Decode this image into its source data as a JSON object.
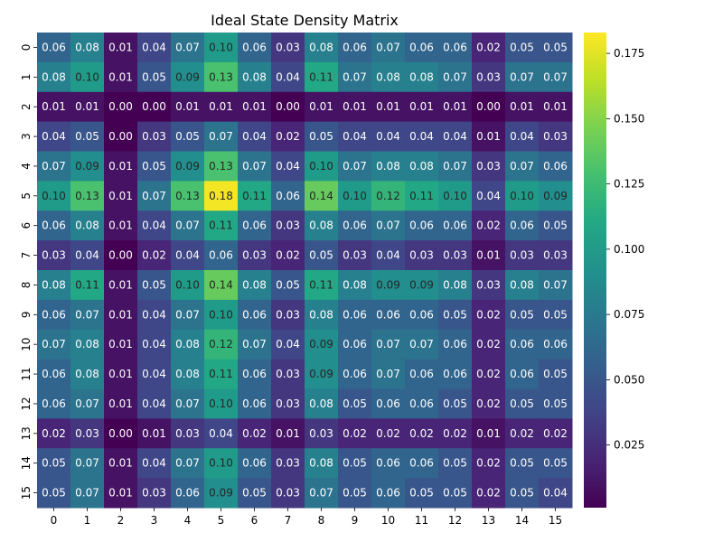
{
  "chart_data": {
    "type": "heatmap",
    "title": "Ideal State Density Matrix",
    "x_labels": [
      "0",
      "1",
      "2",
      "3",
      "4",
      "5",
      "6",
      "7",
      "8",
      "9",
      "10",
      "11",
      "12",
      "13",
      "14",
      "15"
    ],
    "y_labels": [
      "0",
      "1",
      "2",
      "3",
      "4",
      "5",
      "6",
      "7",
      "8",
      "9",
      "10",
      "11",
      "12",
      "13",
      "14",
      "15"
    ],
    "values": [
      [
        0.06,
        0.08,
        0.01,
        0.04,
        0.07,
        0.1,
        0.06,
        0.03,
        0.08,
        0.06,
        0.07,
        0.06,
        0.06,
        0.02,
        0.05,
        0.05
      ],
      [
        0.08,
        0.1,
        0.01,
        0.05,
        0.09,
        0.13,
        0.08,
        0.04,
        0.11,
        0.07,
        0.08,
        0.08,
        0.07,
        0.03,
        0.07,
        0.07
      ],
      [
        0.01,
        0.01,
        0.0,
        0.0,
        0.01,
        0.01,
        0.01,
        0.0,
        0.01,
        0.01,
        0.01,
        0.01,
        0.01,
        0.0,
        0.01,
        0.01
      ],
      [
        0.04,
        0.05,
        0.0,
        0.03,
        0.05,
        0.07,
        0.04,
        0.02,
        0.05,
        0.04,
        0.04,
        0.04,
        0.04,
        0.01,
        0.04,
        0.03
      ],
      [
        0.07,
        0.09,
        0.01,
        0.05,
        0.09,
        0.13,
        0.07,
        0.04,
        0.1,
        0.07,
        0.08,
        0.08,
        0.07,
        0.03,
        0.07,
        0.06
      ],
      [
        0.1,
        0.13,
        0.01,
        0.07,
        0.13,
        0.18,
        0.11,
        0.06,
        0.14,
        0.1,
        0.12,
        0.11,
        0.1,
        0.04,
        0.1,
        0.09
      ],
      [
        0.06,
        0.08,
        0.01,
        0.04,
        0.07,
        0.11,
        0.06,
        0.03,
        0.08,
        0.06,
        0.07,
        0.06,
        0.06,
        0.02,
        0.06,
        0.05
      ],
      [
        0.03,
        0.04,
        0.0,
        0.02,
        0.04,
        0.06,
        0.03,
        0.02,
        0.05,
        0.03,
        0.04,
        0.03,
        0.03,
        0.01,
        0.03,
        0.03
      ],
      [
        0.08,
        0.11,
        0.01,
        0.05,
        0.1,
        0.14,
        0.08,
        0.05,
        0.11,
        0.08,
        0.09,
        0.09,
        0.08,
        0.03,
        0.08,
        0.07
      ],
      [
        0.06,
        0.07,
        0.01,
        0.04,
        0.07,
        0.1,
        0.06,
        0.03,
        0.08,
        0.06,
        0.06,
        0.06,
        0.05,
        0.02,
        0.05,
        0.05
      ],
      [
        0.07,
        0.08,
        0.01,
        0.04,
        0.08,
        0.12,
        0.07,
        0.04,
        0.09,
        0.06,
        0.07,
        0.07,
        0.06,
        0.02,
        0.06,
        0.06
      ],
      [
        0.06,
        0.08,
        0.01,
        0.04,
        0.08,
        0.11,
        0.06,
        0.03,
        0.09,
        0.06,
        0.07,
        0.06,
        0.06,
        0.02,
        0.06,
        0.05
      ],
      [
        0.06,
        0.07,
        0.01,
        0.04,
        0.07,
        0.1,
        0.06,
        0.03,
        0.08,
        0.05,
        0.06,
        0.06,
        0.05,
        0.02,
        0.05,
        0.05
      ],
      [
        0.02,
        0.03,
        0.0,
        0.01,
        0.03,
        0.04,
        0.02,
        0.01,
        0.03,
        0.02,
        0.02,
        0.02,
        0.02,
        0.01,
        0.02,
        0.02
      ],
      [
        0.05,
        0.07,
        0.01,
        0.04,
        0.07,
        0.1,
        0.06,
        0.03,
        0.08,
        0.05,
        0.06,
        0.06,
        0.05,
        0.02,
        0.05,
        0.05
      ],
      [
        0.05,
        0.07,
        0.01,
        0.03,
        0.06,
        0.09,
        0.05,
        0.03,
        0.07,
        0.05,
        0.06,
        0.05,
        0.05,
        0.02,
        0.05,
        0.04
      ]
    ],
    "colormap": "viridis",
    "color_range": [
      0.001,
      0.183
    ],
    "colorbar_ticks": [
      "0.025",
      "0.050",
      "0.075",
      "0.100",
      "0.125",
      "0.150",
      "0.175"
    ],
    "colorbar_tick_values": [
      0.025,
      0.05,
      0.075,
      0.1,
      0.125,
      0.15,
      0.175
    ],
    "grid": false
  }
}
